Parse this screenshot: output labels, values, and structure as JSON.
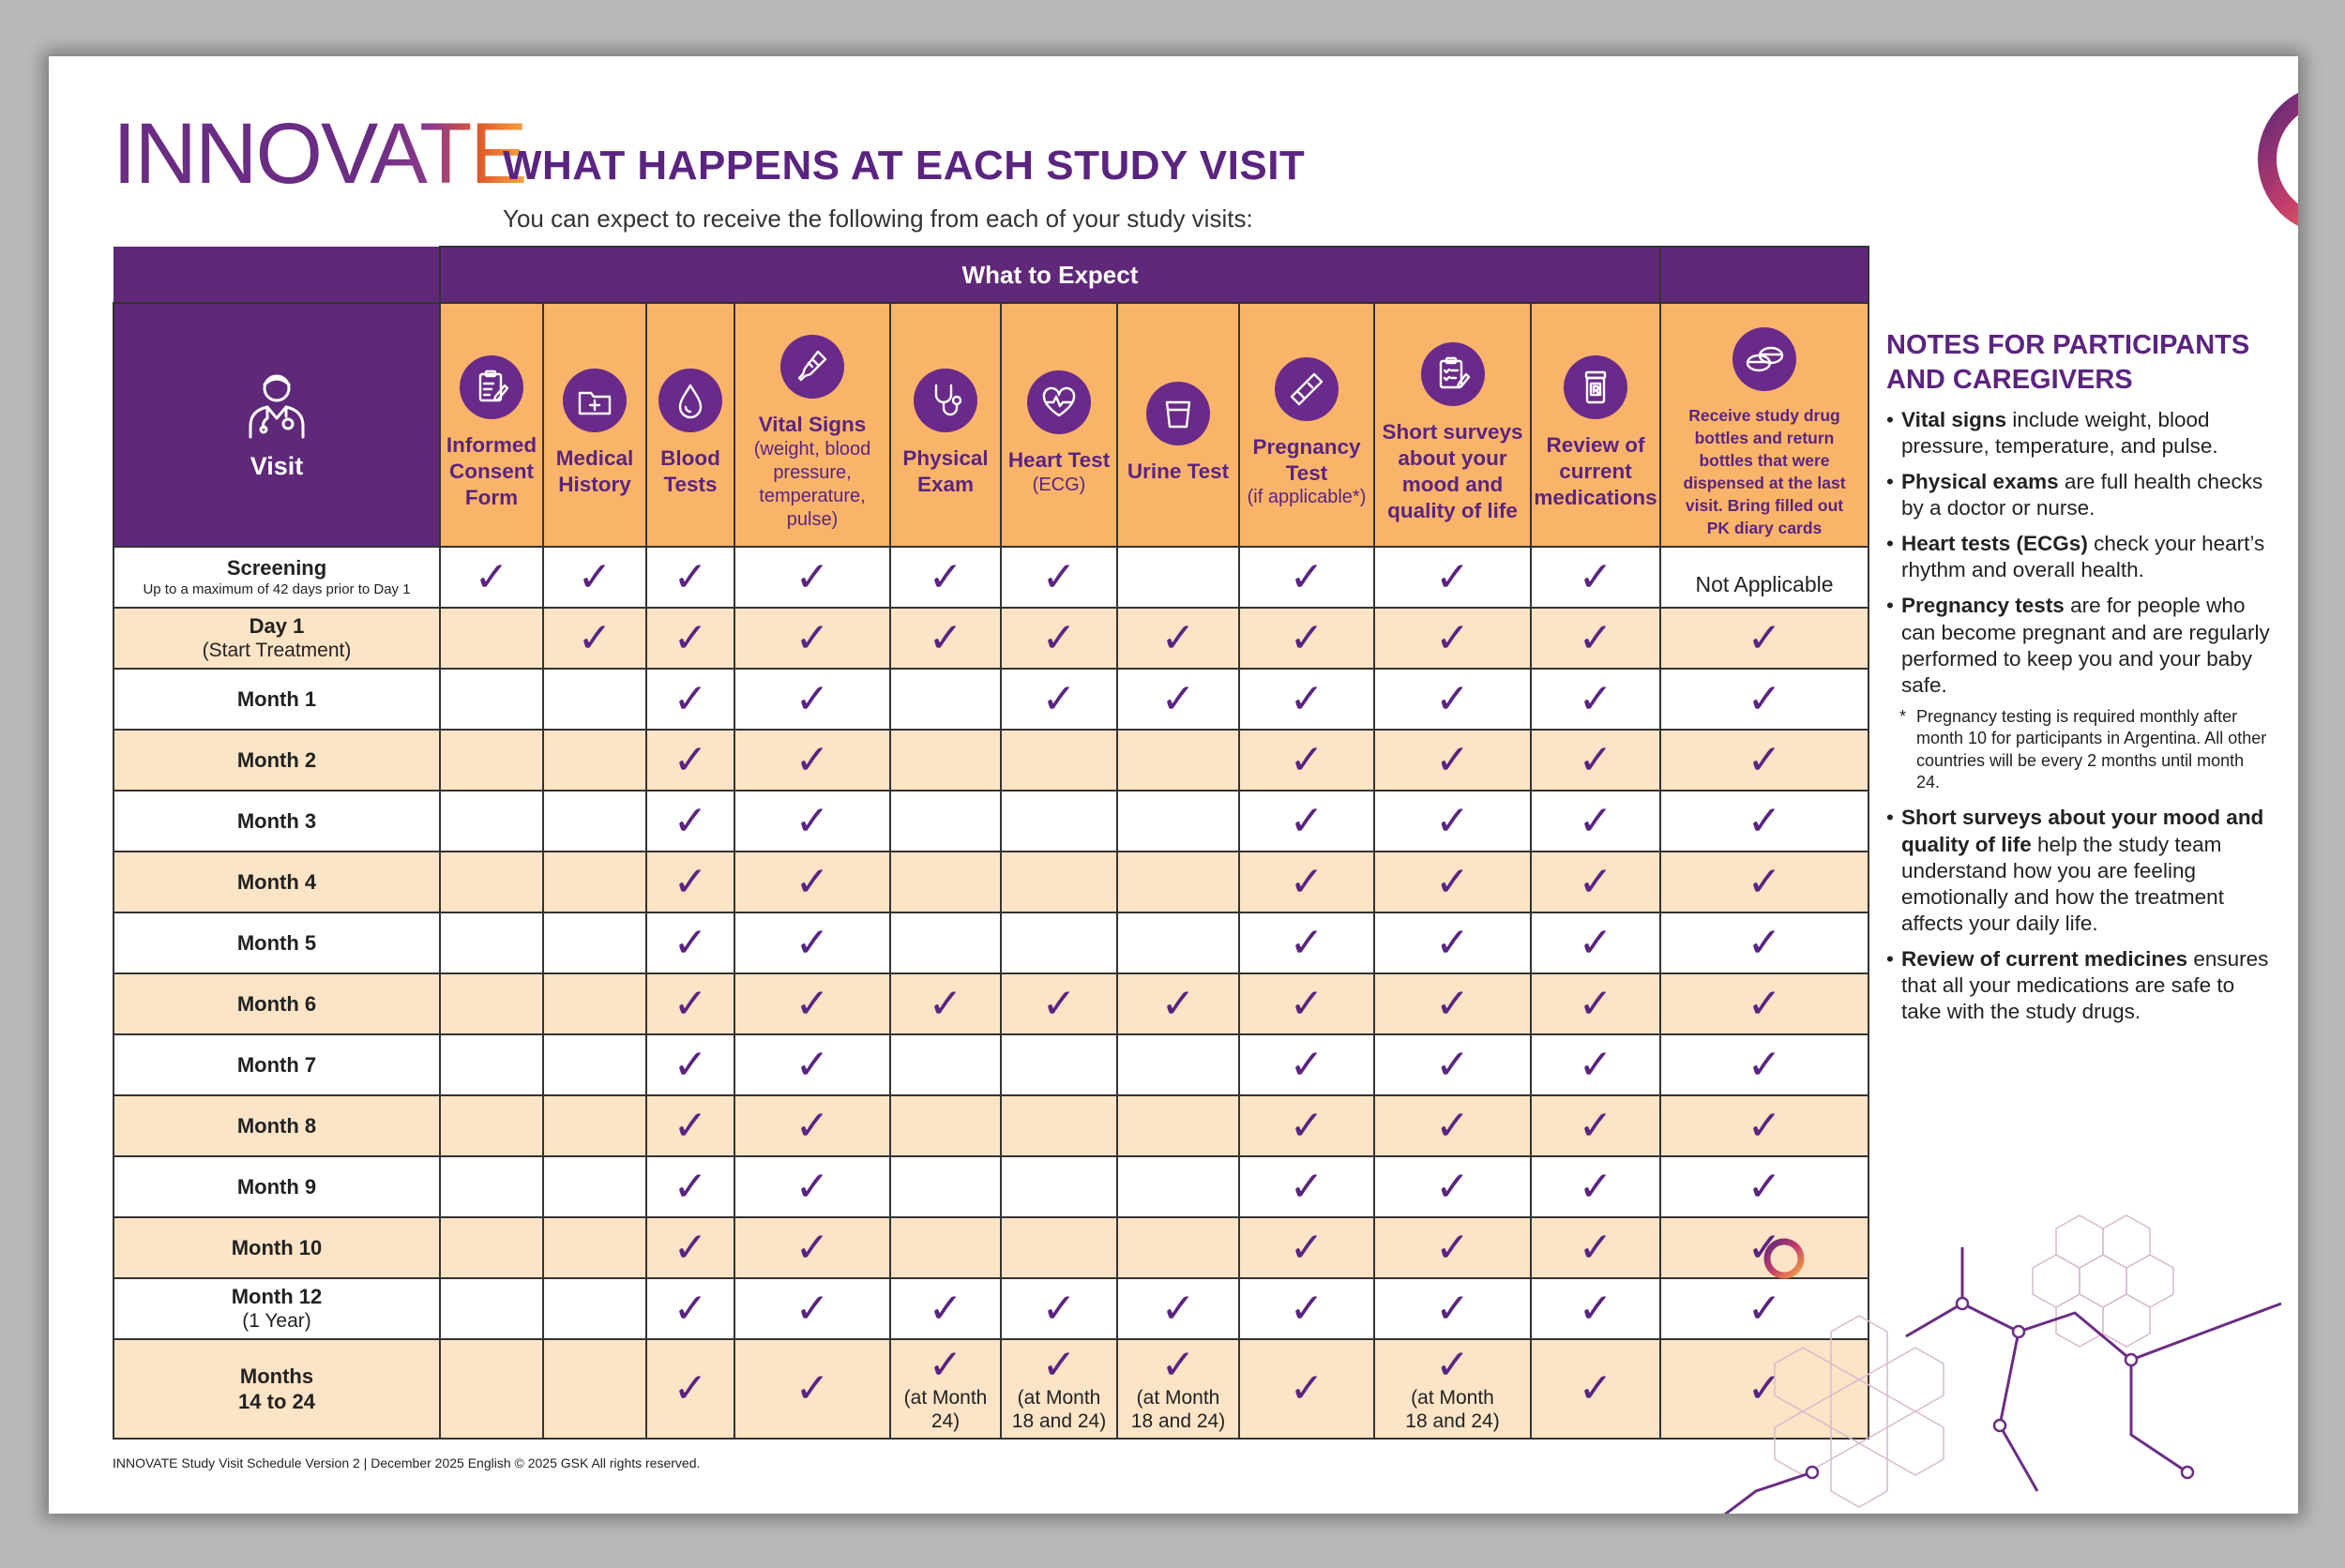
{
  "brand": {
    "logo_left": "INNOV",
    "logo_right": "ATE"
  },
  "header": {
    "title": "WHAT HAPPENS AT EACH STUDY VISIT",
    "subtitle": "You can expect to receive the following from each of your study visits:"
  },
  "table": {
    "group_header": "What to Expect",
    "visit_header": "Visit",
    "columns": [
      {
        "line1": "Informed",
        "line2": "Consent",
        "line3": "Form",
        "icon": "clipboard-pen-icon"
      },
      {
        "line1": "Medical",
        "line2": "History",
        "icon": "medical-folder-icon"
      },
      {
        "line1": "Blood",
        "line2": "Tests",
        "icon": "blood-drop-icon"
      },
      {
        "line1": "Vital Signs",
        "sub1": "(weight, blood",
        "sub2": "pressure,",
        "sub3": "temperature,",
        "sub4": "pulse)",
        "icon": "thermometer-icon"
      },
      {
        "line1": "Physical",
        "line2": "Exam",
        "icon": "stethoscope-icon"
      },
      {
        "line1": "Heart Test",
        "sub1": "(ECG)",
        "icon": "heart-pulse-icon"
      },
      {
        "line1": "Urine Test",
        "icon": "urine-cup-icon"
      },
      {
        "line1": "Pregnancy",
        "line2": "Test",
        "sub1": "(if applicable*)",
        "icon": "pregnancy-test-icon"
      },
      {
        "line1": "Short surveys",
        "line2": "about your",
        "line3": "mood and",
        "line4": "quality of life",
        "icon": "survey-clipboard-icon"
      },
      {
        "line1": "Review of",
        "line2": "current",
        "line3": "medications",
        "icon": "medication-bottle-icon"
      },
      {
        "s1": "Receive study drug",
        "s2": "bottles and return",
        "s3": "bottles that were",
        "s4": "dispensed at the last",
        "s5": "visit. Bring filled out",
        "s6": "PK diary cards",
        "icon": "pills-icon"
      }
    ],
    "rows": [
      {
        "label": "Screening",
        "sub": "Up to a maximum of 42 days prior to Day 1",
        "cells": [
          "✓",
          "✓",
          "✓",
          "✓",
          "✓",
          "✓",
          "",
          "✓",
          "✓",
          "✓",
          "Not Applicable"
        ]
      },
      {
        "label": "Day 1",
        "sub": "(Start Treatment)",
        "cells": [
          "",
          "✓",
          "✓",
          "✓",
          "✓",
          "✓",
          "✓",
          "✓",
          "✓",
          "✓",
          "✓"
        ]
      },
      {
        "label": "Month 1",
        "cells": [
          "",
          "",
          "✓",
          "✓",
          "",
          "✓",
          "✓",
          "✓",
          "✓",
          "✓",
          "✓"
        ]
      },
      {
        "label": "Month 2",
        "cells": [
          "",
          "",
          "✓",
          "✓",
          "",
          "",
          "",
          "✓",
          "✓",
          "✓",
          "✓"
        ]
      },
      {
        "label": "Month 3",
        "cells": [
          "",
          "",
          "✓",
          "✓",
          "",
          "",
          "",
          "✓",
          "✓",
          "✓",
          "✓"
        ]
      },
      {
        "label": "Month 4",
        "cells": [
          "",
          "",
          "✓",
          "✓",
          "",
          "",
          "",
          "✓",
          "✓",
          "✓",
          "✓"
        ]
      },
      {
        "label": "Month 5",
        "cells": [
          "",
          "",
          "✓",
          "✓",
          "",
          "",
          "",
          "✓",
          "✓",
          "✓",
          "✓"
        ]
      },
      {
        "label": "Month 6",
        "cells": [
          "",
          "",
          "✓",
          "✓",
          "✓",
          "✓",
          "✓",
          "✓",
          "✓",
          "✓",
          "✓"
        ]
      },
      {
        "label": "Month 7",
        "cells": [
          "",
          "",
          "✓",
          "✓",
          "",
          "",
          "",
          "✓",
          "✓",
          "✓",
          "✓"
        ]
      },
      {
        "label": "Month 8",
        "cells": [
          "",
          "",
          "✓",
          "✓",
          "",
          "",
          "",
          "✓",
          "✓",
          "✓",
          "✓"
        ]
      },
      {
        "label": "Month 9",
        "cells": [
          "",
          "",
          "✓",
          "✓",
          "",
          "",
          "",
          "✓",
          "✓",
          "✓",
          "✓"
        ]
      },
      {
        "label": "Month 10",
        "cells": [
          "",
          "",
          "✓",
          "✓",
          "",
          "",
          "",
          "✓",
          "✓",
          "✓",
          "✓"
        ]
      },
      {
        "label": "Month 12",
        "sub": "(1 Year)",
        "cells": [
          "",
          "",
          "✓",
          "✓",
          "✓",
          "✓",
          "✓",
          "✓",
          "✓",
          "✓",
          "✓"
        ]
      },
      {
        "label": "Months",
        "label2": "14 to 24",
        "cells": [
          "",
          "",
          "✓",
          "✓",
          "✓",
          "✓",
          "✓",
          "✓",
          "✓",
          "✓",
          "✓"
        ],
        "notes": {
          "4": {
            "l1": "(at Month",
            "l2": "24)"
          },
          "5": {
            "l1": "(at Month",
            "l2": "18 and 24)"
          },
          "6": {
            "l1": "(at Month",
            "l2": "18 and 24)"
          },
          "8": {
            "l1": "(at Month",
            "l2": "18 and 24)"
          }
        }
      }
    ]
  },
  "notes": {
    "title_line1": "NOTES FOR PARTICIPANTS",
    "title_line2": "AND CAREGIVERS",
    "items": [
      {
        "bold": "Vital signs",
        "text": " include weight, blood pressure, temperature, and pulse."
      },
      {
        "bold": "Physical exams",
        "text": " are full health checks by a doctor or nurse."
      },
      {
        "bold": "Heart tests (ECGs)",
        "text": " check your heart’s rhythm and overall health."
      },
      {
        "bold": "Pregnancy tests",
        "text": " are for people who can become pregnant and are regularly performed to keep you and your baby safe."
      },
      {
        "bold": "Short surveys about your mood and quality of life",
        "text": " help the study team understand how you are feeling emotionally and how the treatment affects your daily life."
      },
      {
        "bold": "Review of current medicines",
        "text": " ensures that all your medications are safe to take with the study drugs."
      }
    ],
    "footnote": "Pregnancy testing is required monthly after month 10 for participants in Argentina. All other countries will be every 2 months until month 24."
  },
  "footer": "INNOVATE Study Visit Schedule Version 2 | December 2025 English © 2025 GSK  All rights reserved.",
  "colors": {
    "purple": "#5f2879",
    "orange": "#f9b46a",
    "peach": "#fde4c6"
  }
}
